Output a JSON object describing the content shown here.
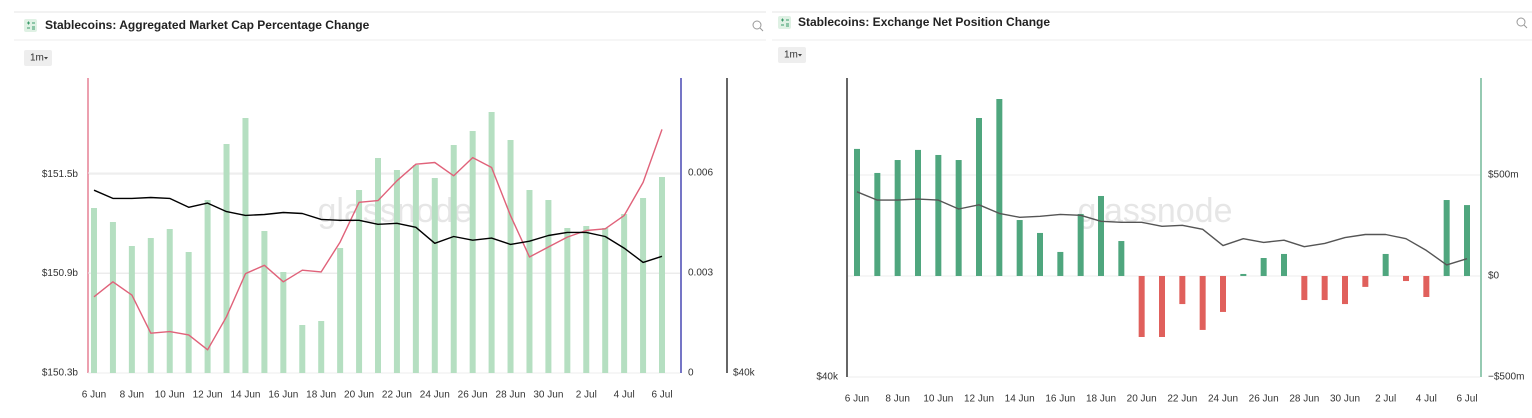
{
  "chart_data": [
    {
      "type": "combo",
      "title": "Stablecoins: Aggregated Market Cap Percentage Change",
      "timeframe": "1m",
      "watermark": "glassnode",
      "categories": [
        "6 Jun",
        null,
        "8 Jun",
        null,
        "10 Jun",
        null,
        "12 Jun",
        null,
        "14 Jun",
        null,
        "16 Jun",
        null,
        "18 Jun",
        null,
        "20 Jun",
        null,
        "22 Jun",
        null,
        "24 Jun",
        null,
        "26 Jun",
        null,
        "28 Jun",
        null,
        "30 Jun",
        null,
        "2 Jul",
        null,
        "4 Jul",
        null,
        "6 Jul"
      ],
      "series": [
        {
          "type": "bar",
          "axis": "y2",
          "color": "#b5dfc1",
          "values": [
            0.00495,
            0.00453,
            0.00381,
            0.00405,
            0.00432,
            0.00363,
            0.00519,
            0.00687,
            0.00765,
            0.00426,
            0.00303,
            0.00144,
            0.00156,
            0.00375,
            0.00549,
            0.00645,
            0.00609,
            0.00624,
            0.00585,
            0.00684,
            0.00726,
            0.00783,
            0.00699,
            0.00549,
            0.00519,
            0.00435,
            0.00441,
            0.00435,
            0.00477,
            0.00525,
            0.00588
          ]
        },
        {
          "type": "line",
          "axis": "y",
          "color": "#e0627a",
          "values": [
            150.76,
            150.85,
            150.77,
            150.54,
            150.55,
            150.53,
            150.44,
            150.64,
            150.9,
            150.95,
            150.85,
            150.92,
            150.91,
            151.09,
            151.33,
            151.34,
            151.46,
            151.56,
            151.57,
            151.49,
            151.6,
            151.54,
            151.25,
            151.0,
            151.06,
            151.12,
            151.16,
            151.17,
            151.25,
            151.45,
            151.77
          ]
        },
        {
          "type": "line",
          "axis": "y3",
          "color": "#000000",
          "values": [
            71000,
            69200,
            69200,
            69400,
            69200,
            67300,
            68200,
            66400,
            65600,
            65800,
            66200,
            66000,
            64800,
            64600,
            64600,
            63800,
            64000,
            63200,
            60100,
            61400,
            60700,
            61100,
            59900,
            60500,
            61600,
            62200,
            62200,
            61400,
            59200,
            56600,
            57700
          ]
        }
      ],
      "ylim": [
        150.3,
        152.08
      ],
      "yticks": [
        {
          "value": 150.3,
          "label": "$150.3b"
        },
        {
          "value": 150.9,
          "label": "$150.9b"
        },
        {
          "value": 151.5,
          "label": "$151.5b"
        }
      ],
      "y_color": "#e0627a",
      "y2lim": [
        0,
        0.00885
      ],
      "y2ticks": [
        0,
        0.003,
        0.006
      ],
      "y2_color": "#1a1aa0",
      "y3lim": [
        40000,
        101000
      ],
      "y3ticks": [
        {
          "value": 40000,
          "label": "$40k"
        }
      ],
      "y3_log": true,
      "y3_color": "#000000",
      "grid": true
    },
    {
      "type": "combo",
      "title": "Stablecoins: Exchange Net Position Change",
      "timeframe": "1m",
      "watermark": "glassnode",
      "categories": [
        "6 Jun",
        null,
        "8 Jun",
        null,
        "10 Jun",
        null,
        "12 Jun",
        null,
        "14 Jun",
        null,
        "16 Jun",
        null,
        "18 Jun",
        null,
        "20 Jun",
        null,
        "22 Jun",
        null,
        "24 Jun",
        null,
        "26 Jun",
        null,
        "28 Jun",
        null,
        "30 Jun",
        null,
        "2 Jul",
        null,
        "4 Jul",
        null,
        "6 Jul"
      ],
      "series": [
        {
          "type": "bar",
          "axis": "y",
          "color": "#4fa67e",
          "negative_color": "#e0605c",
          "values": [
            629000000,
            510000000,
            574000000,
            624000000,
            599000000,
            574000000,
            782000000,
            876000000,
            277000000,
            213000000,
            119000000,
            307000000,
            396000000,
            173000000,
            -302000000,
            -302000000,
            -139000000,
            -267000000,
            -178000000,
            10000000,
            89000000,
            109000000,
            -119000000,
            -119000000,
            -139000000,
            -54000000,
            109000000,
            -25000000,
            -104000000,
            376000000,
            351000000
          ]
        },
        {
          "type": "line",
          "axis": "y3",
          "color": "#555555",
          "values": [
            71000,
            69200,
            69200,
            69400,
            69200,
            67300,
            68200,
            66400,
            65600,
            65800,
            66200,
            66000,
            64800,
            64600,
            64600,
            63800,
            64000,
            63200,
            60100,
            61400,
            60700,
            61100,
            59900,
            60500,
            61600,
            62200,
            62200,
            61400,
            59200,
            56600,
            57700
          ]
        }
      ],
      "ylim": [
        -500000000,
        980000000
      ],
      "yticks": [
        {
          "value": -500000000,
          "label": "−$500m"
        },
        {
          "value": 0,
          "label": "$0"
        },
        {
          "value": 500000000,
          "label": "$500m"
        }
      ],
      "y_color": "#4fa67e",
      "y3lim": [
        40000,
        101000
      ],
      "y3ticks": [
        {
          "value": 40000,
          "label": "$40k"
        }
      ],
      "y3_log": true,
      "y3_color": "#000000",
      "grid": true
    }
  ]
}
